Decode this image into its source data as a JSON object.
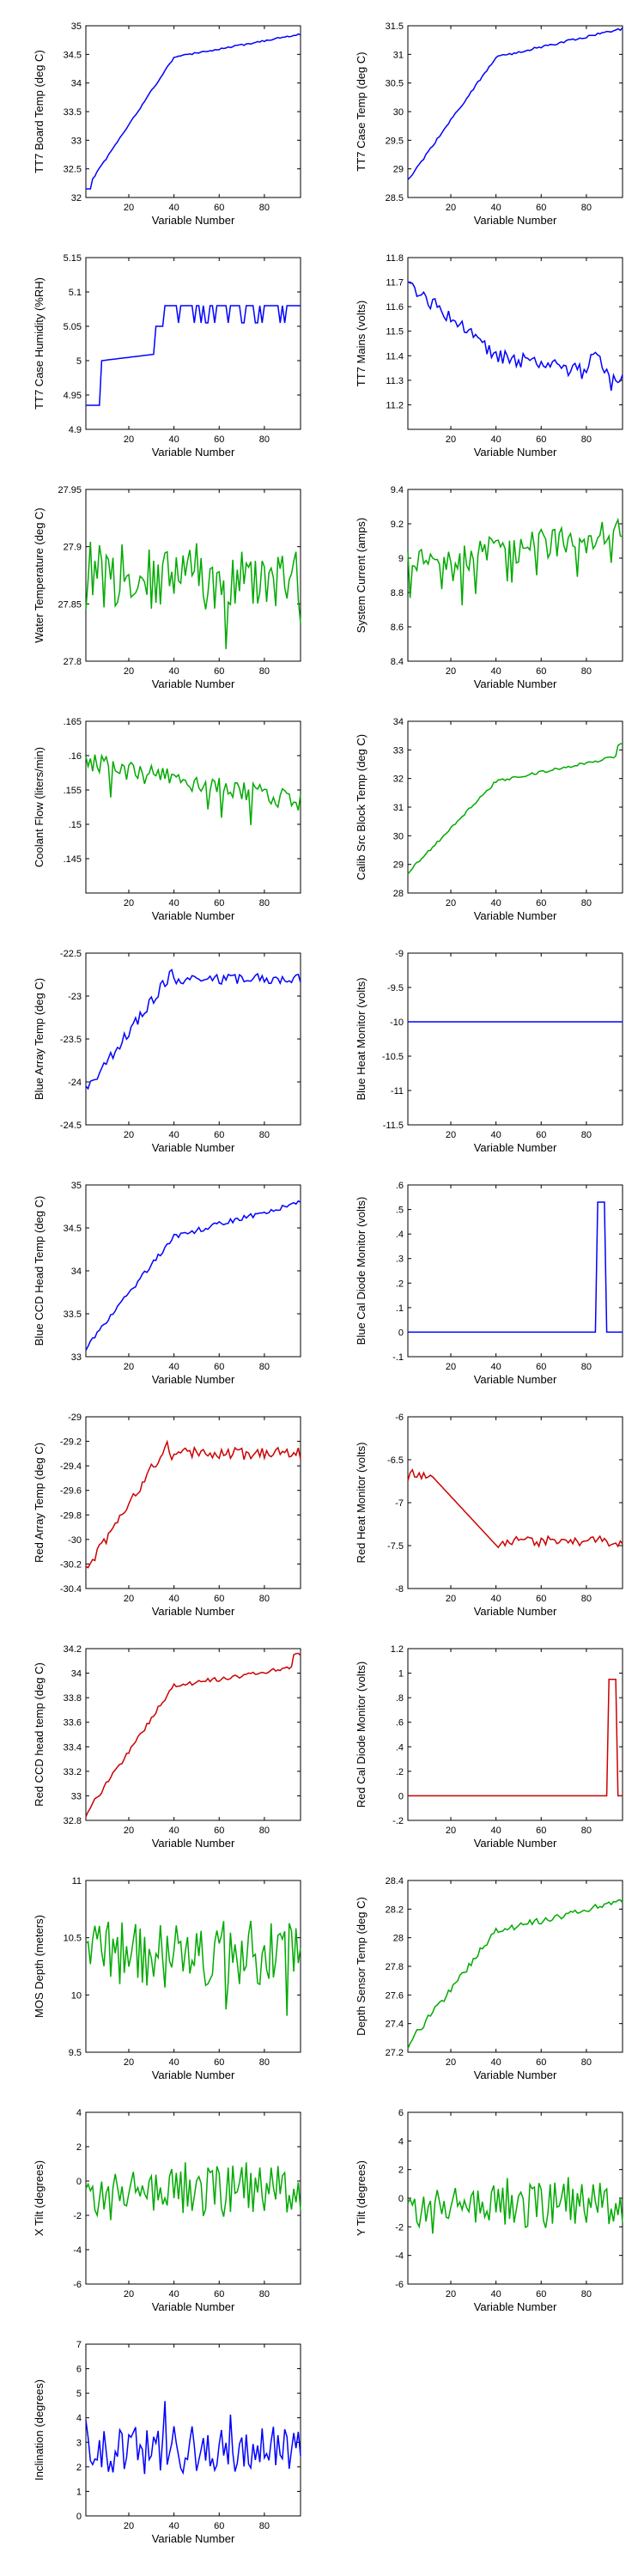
{
  "colors": {
    "blue": "#0000ff",
    "green": "#00aa00",
    "red": "#cc0000"
  },
  "chart_data": [
    {
      "id": "tt7-board-temp",
      "type": "line",
      "color": "blue",
      "ylabel": "TT7 Board Temp (deg C)",
      "xlabel": "Variable Number",
      "xlim": [
        1,
        96
      ],
      "ylim": [
        32,
        35
      ],
      "yticks": [
        32,
        32.5,
        33,
        33.5,
        34,
        34.5,
        35
      ],
      "xticks": [
        20,
        40,
        60,
        80
      ],
      "shape": "board"
    },
    {
      "id": "tt7-case-temp",
      "type": "line",
      "color": "blue",
      "ylabel": "TT7 Case Temp (deg C)",
      "xlabel": "Variable Number",
      "xlim": [
        1,
        96
      ],
      "ylim": [
        28.5,
        31.5
      ],
      "yticks": [
        28.5,
        29,
        29.5,
        30,
        30.5,
        31,
        31.5
      ],
      "xticks": [
        20,
        40,
        60,
        80
      ],
      "shape": "case"
    },
    {
      "id": "tt7-case-humidity",
      "type": "line",
      "color": "blue",
      "ylabel": "TT7 Case Humidity (%RH)",
      "xlabel": "Variable Number",
      "xlim": [
        1,
        96
      ],
      "ylim": [
        4.9,
        5.15
      ],
      "yticks": [
        4.9,
        4.95,
        5,
        5.05,
        5.1,
        5.15
      ],
      "xticks": [
        20,
        40,
        60,
        80
      ],
      "shape": "humidity"
    },
    {
      "id": "tt7-mains",
      "type": "line",
      "color": "blue",
      "ylabel": "TT7 Mains  (volts)",
      "xlabel": "Variable Number",
      "xlim": [
        1,
        96
      ],
      "ylim": [
        11.1,
        11.8
      ],
      "yticks": [
        11.2,
        11.3,
        11.4,
        11.5,
        11.6,
        11.7,
        11.8
      ],
      "xticks": [
        20,
        40,
        60,
        80
      ],
      "shape": "mains"
    },
    {
      "id": "water-temperature",
      "type": "line",
      "color": "green",
      "ylabel": "Water Temperature (deg C)",
      "xlabel": "Variable Number",
      "xlim": [
        1,
        96
      ],
      "ylim": [
        27.8,
        27.95
      ],
      "yticks": [
        27.8,
        27.85,
        27.9,
        27.95
      ],
      "xticks": [
        20,
        40,
        60,
        80
      ],
      "shape": "water"
    },
    {
      "id": "system-current",
      "type": "line",
      "color": "green",
      "ylabel": "System Current (amps)",
      "xlabel": "Variable Number",
      "xlim": [
        1,
        96
      ],
      "ylim": [
        8.4,
        9.4
      ],
      "yticks": [
        8.4,
        8.6,
        8.8,
        9,
        9.2,
        9.4
      ],
      "xticks": [
        20,
        40,
        60,
        80
      ],
      "shape": "current"
    },
    {
      "id": "coolant-flow",
      "type": "line",
      "color": "green",
      "ylabel": "Coolant Flow (liters/min)",
      "xlabel": "Variable Number",
      "xlim": [
        1,
        96
      ],
      "ylim": [
        0.14,
        0.165
      ],
      "yticks": [
        0.145,
        0.15,
        0.155,
        0.16,
        0.165
      ],
      "xticks": [
        20,
        40,
        60,
        80
      ],
      "shape": "coolant"
    },
    {
      "id": "calib-src-block-temp",
      "type": "line",
      "color": "green",
      "ylabel": "Calib Src Block Temp (deg C)",
      "xlabel": "Variable Number",
      "xlim": [
        1,
        96
      ],
      "ylim": [
        28,
        34
      ],
      "yticks": [
        28,
        29,
        30,
        31,
        32,
        33,
        34
      ],
      "xticks": [
        20,
        40,
        60,
        80
      ],
      "shape": "calib"
    },
    {
      "id": "blue-array-temp",
      "type": "line",
      "color": "blue",
      "ylabel": "Blue Array Temp (deg C)",
      "xlabel": "Variable Number",
      "xlim": [
        1,
        96
      ],
      "ylim": [
        -24.5,
        -22.5
      ],
      "yticks": [
        -24.5,
        -24,
        -23.5,
        -23,
        -22.5
      ],
      "xticks": [
        20,
        40,
        60,
        80
      ],
      "shape": "bluearray"
    },
    {
      "id": "blue-heat-monitor",
      "type": "line",
      "color": "blue",
      "ylabel": "Blue Heat Monitor (volts)",
      "xlabel": "Variable Number",
      "xlim": [
        1,
        96
      ],
      "ylim": [
        -11.5,
        -9
      ],
      "yticks": [
        -11.5,
        -11,
        -10.5,
        -10,
        -9.5,
        -9
      ],
      "xticks": [
        20,
        40,
        60,
        80
      ],
      "shape": "flat",
      "flat_value": -10
    },
    {
      "id": "blue-ccd-head-temp",
      "type": "line",
      "color": "blue",
      "ylabel": "Blue CCD Head Temp (deg C)",
      "xlabel": "Variable Number",
      "xlim": [
        1,
        96
      ],
      "ylim": [
        33,
        35
      ],
      "yticks": [
        33,
        33.5,
        34,
        34.5,
        35
      ],
      "xticks": [
        20,
        40,
        60,
        80
      ],
      "shape": "blueccd"
    },
    {
      "id": "blue-cal-diode-monitor",
      "type": "line",
      "color": "blue",
      "ylabel": "Blue Cal Diode Monitor (volts)",
      "xlabel": "Variable Number",
      "xlim": [
        1,
        96
      ],
      "ylim": [
        -0.1,
        0.6
      ],
      "yticks": [
        -0.1,
        0,
        0.1,
        0.2,
        0.3,
        0.4,
        0.5,
        0.6
      ],
      "xticks": [
        20,
        40,
        60,
        80
      ],
      "shape": "pulse",
      "pulse": [
        85,
        88,
        0.53
      ]
    },
    {
      "id": "red-array-temp",
      "type": "line",
      "color": "red",
      "ylabel": "Red Array Temp (deg C)",
      "xlabel": "Variable Number",
      "xlim": [
        1,
        96
      ],
      "ylim": [
        -30.4,
        -29
      ],
      "yticks": [
        -30.4,
        -30.2,
        -30,
        -29.8,
        -29.6,
        -29.4,
        -29.2,
        -29
      ],
      "xticks": [
        20,
        40,
        60,
        80
      ],
      "shape": "redarray"
    },
    {
      "id": "red-heat-monitor",
      "type": "line",
      "color": "red",
      "ylabel": "Red Heat Monitor (volts)",
      "xlabel": "Variable Number",
      "xlim": [
        1,
        96
      ],
      "ylim": [
        -8,
        -6
      ],
      "yticks": [
        -8,
        -7.5,
        -7,
        -6.5,
        -6
      ],
      "xticks": [
        20,
        40,
        60,
        80
      ],
      "shape": "redheat"
    },
    {
      "id": "red-ccd-head-temp",
      "type": "line",
      "color": "red",
      "ylabel": "Red CCD head temp (deg C)",
      "xlabel": "Variable Number",
      "xlim": [
        1,
        96
      ],
      "ylim": [
        32.8,
        34.2
      ],
      "yticks": [
        32.8,
        33,
        33.2,
        33.4,
        33.6,
        33.8,
        34,
        34.2
      ],
      "xticks": [
        20,
        40,
        60,
        80
      ],
      "shape": "redccd"
    },
    {
      "id": "red-cal-diode-monitor",
      "type": "line",
      "color": "red",
      "ylabel": "Red Cal Diode Monitor (volts)",
      "xlabel": "Variable Number",
      "xlim": [
        1,
        96
      ],
      "ylim": [
        -0.2,
        1.2
      ],
      "yticks": [
        -0.2,
        0,
        0.2,
        0.4,
        0.6,
        0.8,
        1,
        1.2
      ],
      "xticks": [
        20,
        40,
        60,
        80
      ],
      "shape": "pulse",
      "pulse": [
        90,
        93,
        0.95
      ]
    },
    {
      "id": "mos-depth",
      "type": "line",
      "color": "green",
      "ylabel": "MOS Depth  (meters)",
      "xlabel": "Variable Number",
      "xlim": [
        1,
        96
      ],
      "ylim": [
        9.5,
        11
      ],
      "yticks": [
        9.5,
        10,
        10.5,
        11
      ],
      "xticks": [
        20,
        40,
        60,
        80
      ],
      "shape": "mos"
    },
    {
      "id": "depth-sensor-temp",
      "type": "line",
      "color": "green",
      "ylabel": "Depth Sensor Temp (deg C)",
      "xlabel": "Variable Number",
      "xlim": [
        1,
        96
      ],
      "ylim": [
        27.2,
        28.4
      ],
      "yticks": [
        27.2,
        27.4,
        27.6,
        27.8,
        28,
        28.2,
        28.4
      ],
      "xticks": [
        20,
        40,
        60,
        80
      ],
      "shape": "depthtemp"
    },
    {
      "id": "x-tilt",
      "type": "line",
      "color": "green",
      "ylabel": "X Tilt  (degrees)",
      "xlabel": "Variable Number",
      "xlim": [
        1,
        96
      ],
      "ylim": [
        -6,
        4
      ],
      "yticks": [
        -6,
        -4,
        -2,
        0,
        2,
        4
      ],
      "xticks": [
        20,
        40,
        60,
        80
      ],
      "shape": "xtilt"
    },
    {
      "id": "y-tilt",
      "type": "line",
      "color": "green",
      "ylabel": "Y Tilt  (degrees)",
      "xlabel": "Variable Number",
      "xlim": [
        1,
        96
      ],
      "ylim": [
        -6,
        6
      ],
      "yticks": [
        -6,
        -4,
        -2,
        0,
        2,
        4,
        6
      ],
      "xticks": [
        20,
        40,
        60,
        80
      ],
      "shape": "ytilt"
    },
    {
      "id": "inclination",
      "type": "line",
      "color": "blue",
      "ylabel": "Inclination  (degrees)",
      "xlabel": "Variable Number",
      "xlim": [
        1,
        96
      ],
      "ylim": [
        0,
        7
      ],
      "yticks": [
        0,
        1,
        2,
        3,
        4,
        5,
        6,
        7
      ],
      "xticks": [
        20,
        40,
        60,
        80
      ],
      "shape": "incl"
    }
  ]
}
